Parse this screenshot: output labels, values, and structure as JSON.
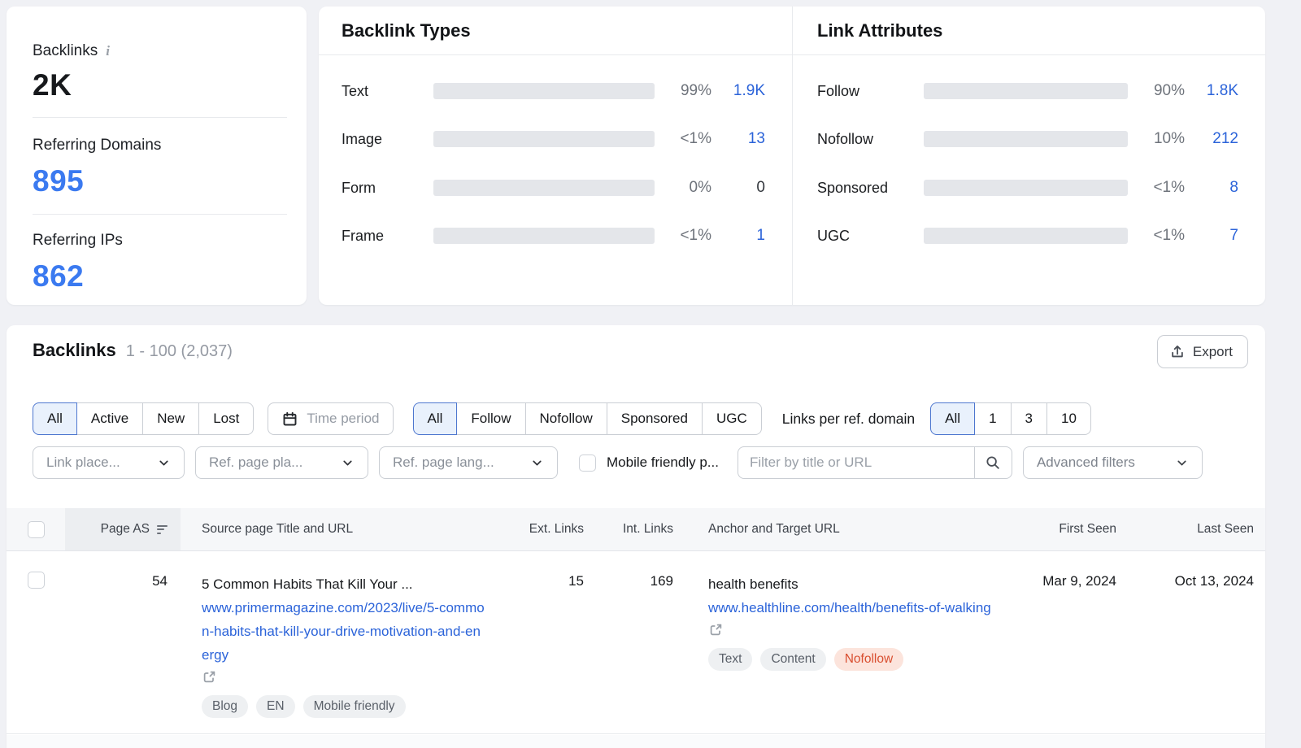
{
  "colors": {
    "accent_blue": "#2b63d9",
    "metric_blue": "#3b7af0",
    "bar_blue": "#57a9f6",
    "bar_green": "#52b987",
    "bar_track": "#e4e6ea",
    "nofollow_badge_bg": "#fce4dc",
    "nofollow_badge_text": "#d94f30"
  },
  "summary": {
    "metrics": [
      {
        "label": "Backlinks",
        "value": "2K"
      },
      {
        "label": "Referring Domains",
        "value": "895"
      },
      {
        "label": "Referring IPs",
        "value": "862"
      }
    ]
  },
  "panels": [
    {
      "title": "Backlink Types",
      "rows": [
        {
          "label": "Text",
          "pct": "99%",
          "value": "1.9K",
          "fill": 100,
          "color": "#57a9f6"
        },
        {
          "label": "Image",
          "pct": "<1%",
          "value": "13",
          "fill": 1.5,
          "color": "#57a9f6"
        },
        {
          "label": "Form",
          "pct": "0%",
          "value": "0",
          "fill": 0,
          "color": "#57a9f6",
          "muted": "true"
        },
        {
          "label": "Frame",
          "pct": "<1%",
          "value": "1",
          "fill": 1.5,
          "color": "#57a9f6"
        }
      ]
    },
    {
      "title": "Link Attributes",
      "rows": [
        {
          "label": "Follow",
          "pct": "90%",
          "value": "1.8K",
          "fill": 100,
          "color": "#52b987"
        },
        {
          "label": "Nofollow",
          "pct": "10%",
          "value": "212",
          "fill": 11,
          "color": "#57a9f6"
        },
        {
          "label": "Sponsored",
          "pct": "<1%",
          "value": "8",
          "fill": 1.2,
          "color": "#57a9f6"
        },
        {
          "label": "UGC",
          "pct": "<1%",
          "value": "7",
          "fill": 1.2,
          "color": "#57a9f6"
        }
      ]
    }
  ],
  "backlinks_section": {
    "title": "Backlinks",
    "range": "1 - 100 (2,037)",
    "export_label": "Export",
    "status_tabs": {
      "options": [
        "All",
        "Active",
        "New",
        "Lost"
      ],
      "selected": "All"
    },
    "time_period_label": "Time period",
    "attr_tabs": {
      "options": [
        "All",
        "Follow",
        "Nofollow",
        "Sponsored",
        "UGC"
      ],
      "selected": "All"
    },
    "links_per_domain": {
      "label": "Links per ref. domain",
      "options": [
        "All",
        "1",
        "3",
        "10"
      ],
      "selected": "All"
    },
    "dropdowns": [
      "Link place...",
      "Ref. page pla...",
      "Ref. page lang..."
    ],
    "mobile_friendly_label": "Mobile friendly p...",
    "search_placeholder": "Filter by title or URL",
    "advanced_filters_label": "Advanced filters",
    "table": {
      "headers": [
        "Page AS",
        "Source page Title and URL",
        "Ext. Links",
        "Int. Links",
        "Anchor and Target URL",
        "First Seen",
        "Last Seen"
      ],
      "rows": [
        {
          "page_as": "54",
          "source_title": "5 Common Habits That Kill Your ...",
          "source_url": "www.primermagazine.com/2023/live/5-common-habits-that-kill-your-drive-motivation-and-energy",
          "source_tags": [
            "Blog",
            "EN",
            "Mobile friendly"
          ],
          "ext_links": "15",
          "int_links": "169",
          "anchor": "health benefits",
          "target_url": "www.healthline.com/health/benefits-of-walking",
          "badges": [
            {
              "label": "Text",
              "type": "gray"
            },
            {
              "label": "Content",
              "type": "gray"
            },
            {
              "label": "Nofollow",
              "type": "nofollow"
            }
          ],
          "first_seen": "Mar 9, 2024",
          "last_seen": "Oct 13, 2024"
        }
      ]
    }
  }
}
